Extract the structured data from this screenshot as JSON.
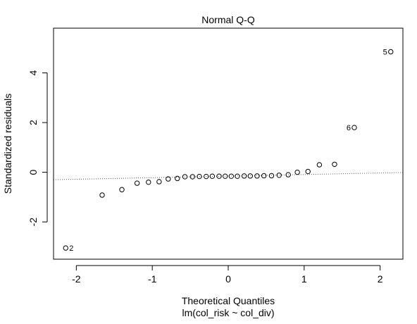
{
  "chart_data": {
    "type": "scatter",
    "title": "Normal Q-Q",
    "xlabel": "Theoretical Quantiles",
    "subtitle": "lm(col_risk ~ col_div)",
    "ylabel": "Standardized residuals",
    "xlim": [
      -2.3,
      2.3
    ],
    "ylim": [
      -3.5,
      5.8
    ],
    "xticks": [
      -2,
      -1,
      0,
      1,
      2
    ],
    "yticks": [
      -2,
      0,
      2,
      4
    ],
    "xtick_labels": [
      "-2",
      "-1",
      "0",
      "1",
      "2"
    ],
    "ytick_labels": [
      "-2",
      "0",
      "2",
      "4"
    ],
    "points": [
      {
        "x": -2.14,
        "y": -3.05,
        "label": "2"
      },
      {
        "x": -1.66,
        "y": -0.92
      },
      {
        "x": -1.4,
        "y": -0.7
      },
      {
        "x": -1.2,
        "y": -0.44
      },
      {
        "x": -1.05,
        "y": -0.4
      },
      {
        "x": -0.91,
        "y": -0.38
      },
      {
        "x": -0.79,
        "y": -0.27
      },
      {
        "x": -0.67,
        "y": -0.25
      },
      {
        "x": -0.57,
        "y": -0.18
      },
      {
        "x": -0.47,
        "y": -0.18
      },
      {
        "x": -0.38,
        "y": -0.17
      },
      {
        "x": -0.29,
        "y": -0.17
      },
      {
        "x": -0.21,
        "y": -0.16
      },
      {
        "x": -0.12,
        "y": -0.16
      },
      {
        "x": -0.04,
        "y": -0.16
      },
      {
        "x": 0.04,
        "y": -0.16
      },
      {
        "x": 0.12,
        "y": -0.16
      },
      {
        "x": 0.21,
        "y": -0.15
      },
      {
        "x": 0.29,
        "y": -0.15
      },
      {
        "x": 0.38,
        "y": -0.15
      },
      {
        "x": 0.47,
        "y": -0.14
      },
      {
        "x": 0.57,
        "y": -0.14
      },
      {
        "x": 0.67,
        "y": -0.12
      },
      {
        "x": 0.79,
        "y": -0.1
      },
      {
        "x": 0.91,
        "y": 0.0
      },
      {
        "x": 1.05,
        "y": 0.03
      },
      {
        "x": 1.2,
        "y": 0.3
      },
      {
        "x": 1.4,
        "y": 0.32
      },
      {
        "x": 1.66,
        "y": 1.8,
        "label": "6"
      },
      {
        "x": 2.14,
        "y": 4.85,
        "label": "5"
      }
    ],
    "reference_line": {
      "x": [
        -2.3,
        2.3
      ],
      "y": [
        -0.3,
        -0.01
      ]
    }
  }
}
